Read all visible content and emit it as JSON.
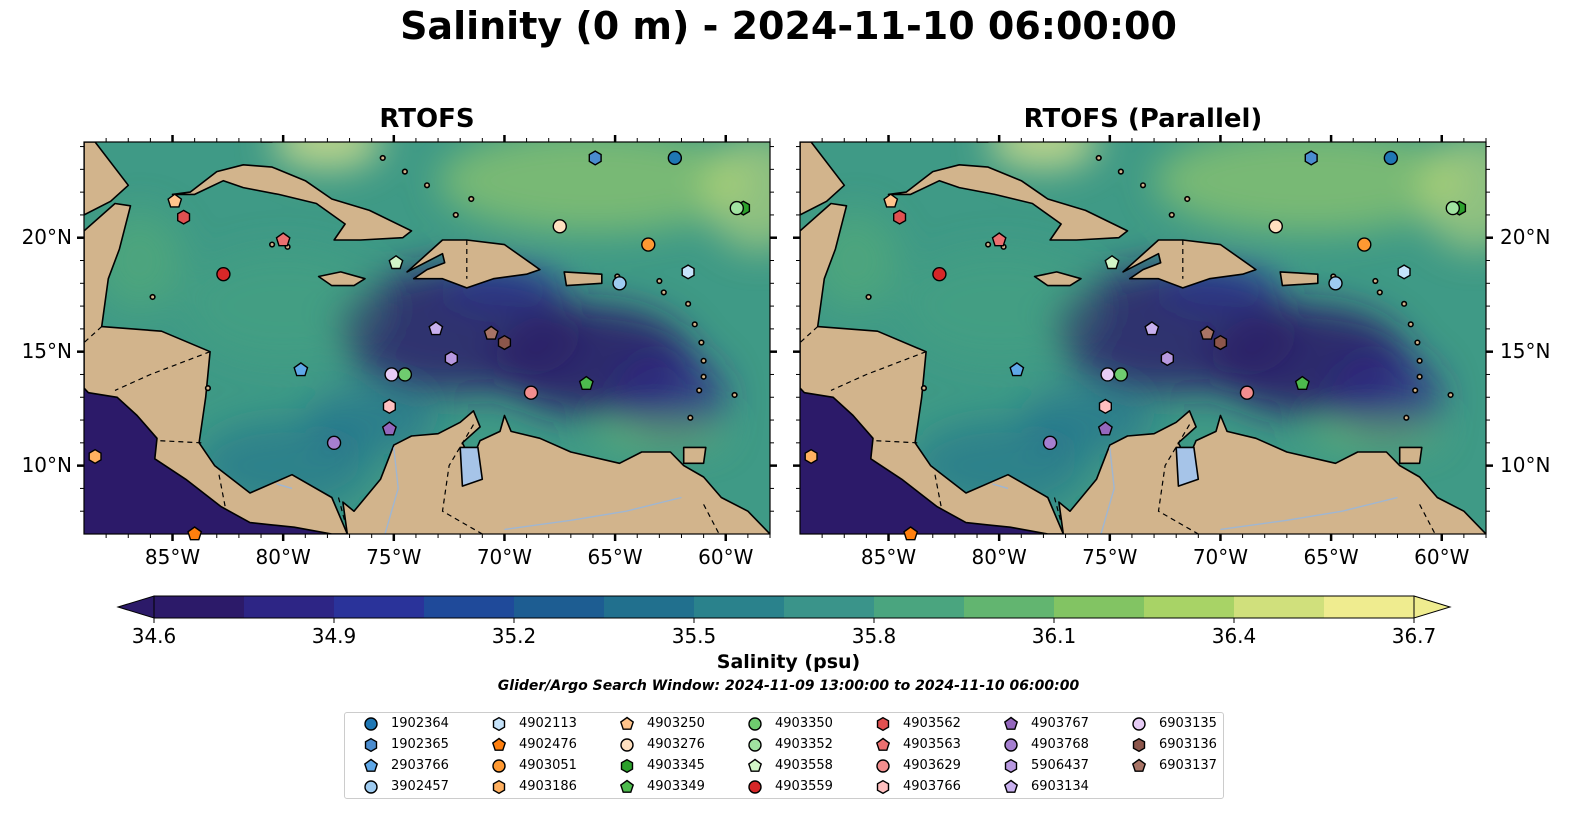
{
  "title": "Salinity (0 m) - 2024-11-10 06:00:00",
  "panels": [
    {
      "title": "RTOFS"
    },
    {
      "title": "RTOFS (Parallel)"
    }
  ],
  "map_extent": {
    "lon": [
      -89,
      -58
    ],
    "lat": [
      7,
      24.2
    ]
  },
  "lon_ticks": [
    {
      "value": -85,
      "label": "85°W"
    },
    {
      "value": -80,
      "label": "80°W"
    },
    {
      "value": -75,
      "label": "75°W"
    },
    {
      "value": -70,
      "label": "70°W"
    },
    {
      "value": -65,
      "label": "65°W"
    },
    {
      "value": -60,
      "label": "60°W"
    }
  ],
  "lat_ticks": [
    {
      "value": 20,
      "label": "20°N"
    },
    {
      "value": 15,
      "label": "15°N"
    },
    {
      "value": 10,
      "label": "10°N"
    }
  ],
  "colorbar": {
    "min": 34.6,
    "max": 36.7,
    "tick_labels": [
      "34.6",
      "34.9",
      "35.2",
      "35.5",
      "35.8",
      "36.1",
      "36.4",
      "36.7"
    ],
    "label": "Salinity (psu)",
    "colors": [
      "#2c1a69",
      "#2d2585",
      "#2a339a",
      "#1f4a9a",
      "#1d5d92",
      "#21708e",
      "#2a828c",
      "#3a948a",
      "#4aa57f",
      "#62b570",
      "#82c463",
      "#a8d366",
      "#d0e07c",
      "#efec8f"
    ]
  },
  "search_window": "Glider/Argo Search Window: 2024-11-09 13:00:00 to 2024-11-10 06:00:00",
  "colors": {
    "ocean_base": "#3f9a86",
    "land": "#d2b48c",
    "pacific": "#2c1a69",
    "lake": "#a6c4e8"
  },
  "platforms": [
    {
      "id": "1902364",
      "marker": "circle",
      "color": "#1f77b4",
      "lon": -62.3,
      "lat": 23.5
    },
    {
      "id": "1902365",
      "marker": "hexagon",
      "color": "#4a8ccf",
      "lon": -65.9,
      "lat": 23.5
    },
    {
      "id": "2903766",
      "marker": "pentagon",
      "color": "#5fa8e8",
      "lon": -79.2,
      "lat": 14.2
    },
    {
      "id": "3902457",
      "marker": "circle",
      "color": "#9ecbf0",
      "lon": -64.8,
      "lat": 18.0
    },
    {
      "id": "4902113",
      "marker": "hexagon",
      "color": "#c6e3fa",
      "lon": -61.7,
      "lat": 18.5
    },
    {
      "id": "4902476",
      "marker": "pentagon",
      "color": "#ff7f0e",
      "lon": -84.0,
      "lat": 7.0
    },
    {
      "id": "4903051",
      "marker": "circle",
      "color": "#ff9932",
      "lon": -63.5,
      "lat": 19.7
    },
    {
      "id": "4903186",
      "marker": "hexagon",
      "color": "#ffb060",
      "lon": -88.5,
      "lat": 10.4
    },
    {
      "id": "4903250",
      "marker": "pentagon",
      "color": "#ffc48c",
      "lon": -84.9,
      "lat": 21.6
    },
    {
      "id": "4903276",
      "marker": "circle",
      "color": "#ffe0c0",
      "lon": -67.5,
      "lat": 20.5
    },
    {
      "id": "4903345",
      "marker": "hexagon",
      "color": "#2ca02c",
      "lon": -59.2,
      "lat": 21.3
    },
    {
      "id": "4903349",
      "marker": "pentagon",
      "color": "#4dbb4d",
      "lon": -66.3,
      "lat": 13.6
    },
    {
      "id": "4903350",
      "marker": "circle",
      "color": "#6fcc6f",
      "lon": -74.5,
      "lat": 14.0
    },
    {
      "id": "4903352",
      "marker": "circle",
      "color": "#a1e3a1",
      "lon": -59.5,
      "lat": 21.3
    },
    {
      "id": "4903558",
      "marker": "pentagon",
      "color": "#d2f5c8",
      "lon": -74.9,
      "lat": 18.9
    },
    {
      "id": "4903559",
      "marker": "circle",
      "color": "#d62728",
      "lon": -82.7,
      "lat": 18.4
    },
    {
      "id": "4903562",
      "marker": "hexagon",
      "color": "#e05050",
      "lon": -84.5,
      "lat": 20.9
    },
    {
      "id": "4903563",
      "marker": "pentagon",
      "color": "#eb7070",
      "lon": -80.0,
      "lat": 19.9
    },
    {
      "id": "4903629",
      "marker": "circle",
      "color": "#f28e8e",
      "lon": -68.8,
      "lat": 13.2
    },
    {
      "id": "4903766",
      "marker": "hexagon",
      "color": "#ffc0c0",
      "lon": -75.2,
      "lat": 12.6
    },
    {
      "id": "4903767",
      "marker": "pentagon",
      "color": "#9467bd",
      "lon": -75.2,
      "lat": 11.6
    },
    {
      "id": "4903768",
      "marker": "circle",
      "color": "#a57fd0",
      "lon": -77.7,
      "lat": 11.0
    },
    {
      "id": "5906437",
      "marker": "hexagon",
      "color": "#b899e0",
      "lon": -72.4,
      "lat": 14.7
    },
    {
      "id": "6903134",
      "marker": "pentagon",
      "color": "#c8b0ee",
      "lon": -73.1,
      "lat": 16.0
    },
    {
      "id": "6903135",
      "marker": "circle",
      "color": "#e6ccf5",
      "lon": -75.1,
      "lat": 14.0
    },
    {
      "id": "6903136",
      "marker": "hexagon",
      "color": "#8c564b",
      "lon": -70.0,
      "lat": 15.4
    },
    {
      "id": "6903137",
      "marker": "pentagon",
      "color": "#a87466",
      "lon": -70.6,
      "lat": 15.8
    }
  ]
}
